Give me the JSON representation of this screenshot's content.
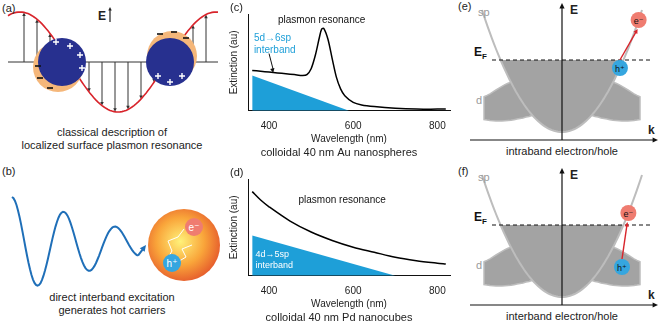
{
  "chart_data": [
    {
      "type": "line",
      "panel": "(c)",
      "title": "colloidal 40 nm Au nanospheres",
      "x_label": "Wavelength (nm)",
      "y_label": "Extinction (au)",
      "xlim": [
        350,
        830
      ],
      "xticks": [
        400,
        600,
        800
      ],
      "ylim": [
        0,
        1.15
      ],
      "yticks": [],
      "tick_labels": "x",
      "grid": false,
      "annotations": [
        {
          "text": [
            "plasmon resonance"
          ]
        },
        {
          "text": [
            "5d→6sp",
            "interband"
          ]
        }
      ],
      "series": [
        {
          "type": "line",
          "color": "#000000",
          "x": [
            360,
            380,
            400,
            420,
            440,
            460,
            480,
            490,
            500,
            510,
            520,
            525,
            530,
            540,
            550,
            560,
            570,
            580,
            600,
            620,
            650,
            700,
            750,
            800,
            820
          ],
          "values": [
            0.48,
            0.47,
            0.46,
            0.45,
            0.44,
            0.43,
            0.42,
            0.43,
            0.5,
            0.66,
            0.88,
            0.97,
            0.98,
            0.85,
            0.62,
            0.4,
            0.26,
            0.18,
            0.1,
            0.07,
            0.05,
            0.03,
            0.02,
            0.02,
            0.02
          ]
        },
        {
          "type": "area",
          "color": "#1e9fd8",
          "x": [
            360,
            590
          ],
          "values": [
            0.42,
            0
          ]
        }
      ]
    },
    {
      "type": "line",
      "panel": "(d)",
      "title": "colloidal 40 nm Pd nanocubes",
      "x_label": "Wavelength (nm)",
      "y_label": "Extinction (au)",
      "xlim": [
        350,
        830
      ],
      "xticks": [
        400,
        600,
        800
      ],
      "ylim": [
        0,
        1.15
      ],
      "yticks": [],
      "tick_labels": "x",
      "grid": false,
      "annotations": [
        {
          "text": [
            "plasmon resonance"
          ]
        },
        {
          "text": [
            "4d→5sp",
            "interband"
          ]
        }
      ],
      "series": [
        {
          "type": "line",
          "color": "#000000",
          "x": [
            360,
            380,
            400,
            450,
            500,
            550,
            600,
            650,
            700,
            750,
            800,
            820
          ],
          "values": [
            1.0,
            0.9,
            0.82,
            0.65,
            0.52,
            0.42,
            0.34,
            0.28,
            0.22,
            0.18,
            0.15,
            0.14
          ]
        },
        {
          "type": "area",
          "color": "#1e9fd8",
          "x": [
            360,
            700
          ],
          "values": [
            0.48,
            0
          ]
        }
      ]
    }
  ],
  "diagram": {
    "panels": [
      {
        "label": "(a)",
        "field": "E",
        "caption": [
          "classical description of",
          "localized surface plasmon resonance"
        ]
      },
      {
        "label": "(b)",
        "electron": "e⁻",
        "hole": "h⁺",
        "caption": [
          "direct interband excitation",
          "generates hot carriers"
        ]
      },
      {
        "label": "(e)",
        "energy_axis": "E",
        "momentum_axis": "k",
        "fermi_level": {
          "text": "E",
          "subscript": "F"
        },
        "bands": [
          "sp",
          "d"
        ],
        "electron": "e⁻",
        "hole": "h⁺",
        "caption": [
          "intraband electron/hole"
        ]
      },
      {
        "label": "(f)",
        "energy_axis": "E",
        "momentum_axis": "k",
        "fermi_level": {
          "text": "E",
          "subscript": "F"
        },
        "bands": [
          "sp",
          "d"
        ],
        "electron": "e⁻",
        "hole": "h⁺",
        "caption": [
          "interband electron/hole"
        ]
      }
    ]
  }
}
